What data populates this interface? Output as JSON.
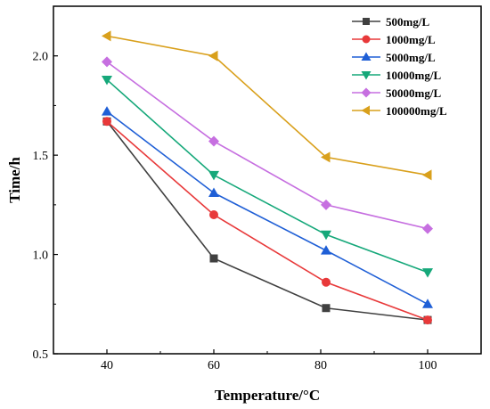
{
  "chart_data": {
    "type": "line",
    "xlabel": "Temperature/°C",
    "ylabel": "Time/h",
    "xlim": [
      30,
      110
    ],
    "ylim": [
      0.5,
      2.25
    ],
    "x": [
      40,
      60,
      81,
      100
    ],
    "x_ticks": [
      40,
      60,
      80,
      100
    ],
    "y_ticks": [
      0.5,
      1.0,
      1.5,
      2.0
    ],
    "x_tick_labels": [
      "40",
      "60",
      "80",
      "100"
    ],
    "y_tick_labels": [
      "0.5",
      "1.0",
      "1.5",
      "2.0"
    ],
    "grid": false,
    "legend_position": "top-right",
    "series": [
      {
        "name": "500mg/L",
        "marker": "square",
        "color": "#404040",
        "values": [
          1.67,
          0.98,
          0.73,
          0.67
        ]
      },
      {
        "name": "1000mg/L",
        "marker": "circle",
        "color": "#e8393a",
        "values": [
          1.67,
          1.2,
          0.86,
          0.67
        ]
      },
      {
        "name": "5000mg/L",
        "marker": "triangle-up",
        "color": "#1f5fd6",
        "values": [
          1.72,
          1.31,
          1.02,
          0.75
        ]
      },
      {
        "name": "10000mg/L",
        "marker": "triangle-down",
        "color": "#16a87a",
        "values": [
          1.88,
          1.4,
          1.1,
          0.91
        ]
      },
      {
        "name": "50000mg/L",
        "marker": "diamond",
        "color": "#c66fe0",
        "values": [
          1.97,
          1.57,
          1.25,
          1.13
        ]
      },
      {
        "name": "100000mg/L",
        "marker": "triangle-left",
        "color": "#d9a01c",
        "values": [
          2.1,
          2.0,
          1.49,
          1.4
        ]
      }
    ]
  }
}
